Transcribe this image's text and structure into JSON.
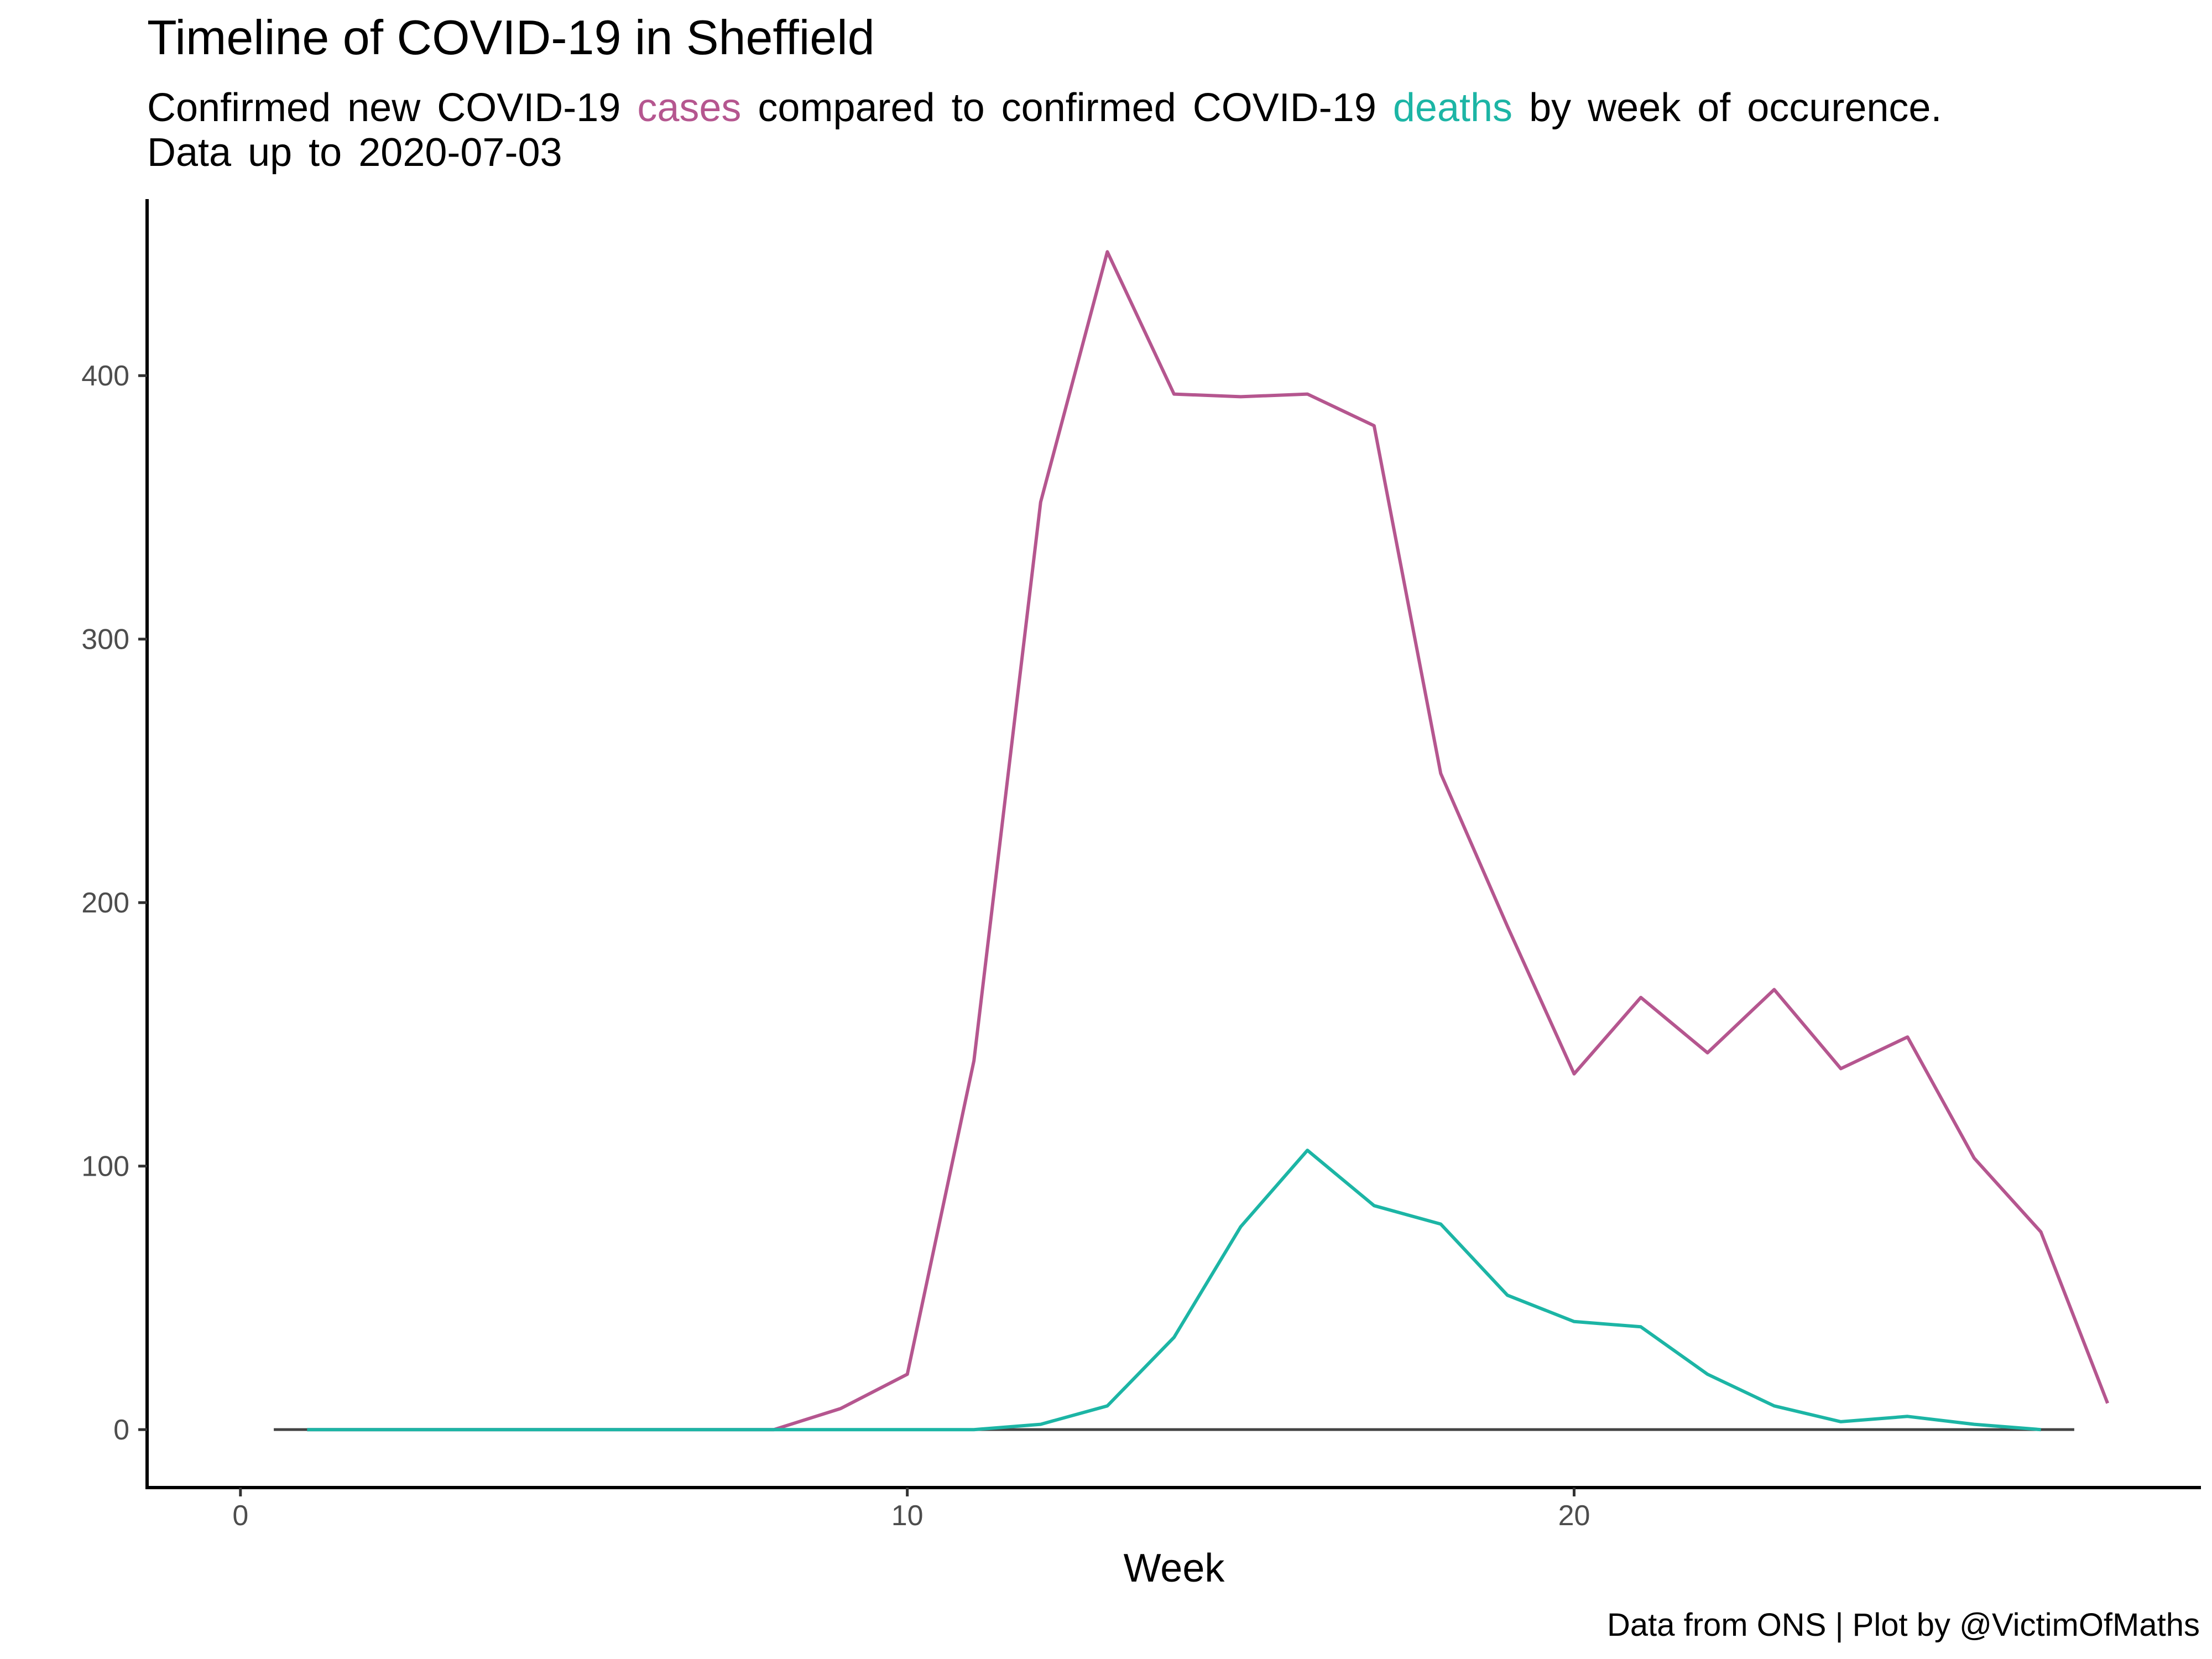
{
  "chart_data": {
    "type": "line",
    "title": "Timeline of COVID-19 in Sheffield",
    "subtitle": {
      "line1_prefix": "Confirmed new COVID-19",
      "cases_word": "cases",
      "line1_middle": "compared to confirmed COVID-19",
      "deaths_word": "deaths",
      "line1_suffix": "by week of occurence.",
      "line2": "Data up to 2020-07-03"
    },
    "caption": "Data from ONS | Plot by @VictimOfMaths",
    "xlabel": "Week",
    "ylabel": "",
    "xlim": [
      -1.4,
      29.4
    ],
    "ylim": [
      -22,
      467
    ],
    "x_ticks": [
      0,
      10,
      20
    ],
    "y_ticks": [
      0,
      100,
      200,
      300,
      400
    ],
    "grid": false,
    "zero_line": {
      "x_start": 0.5,
      "x_end": 27.5,
      "color": "#444444"
    },
    "series": [
      {
        "name": "cases",
        "color": "#b5568f",
        "x": [
          1,
          2,
          3,
          4,
          5,
          6,
          7,
          8,
          9,
          10,
          11,
          12,
          13,
          14,
          15,
          16,
          17,
          18,
          19,
          20,
          21,
          22,
          23,
          24,
          25,
          26,
          27,
          28
        ],
        "values": [
          0,
          0,
          0,
          0,
          0,
          0,
          0,
          0,
          8,
          21,
          140,
          352,
          447,
          393,
          392,
          393,
          381,
          249,
          191,
          135,
          164,
          143,
          167,
          137,
          149,
          103,
          75,
          10
        ]
      },
      {
        "name": "deaths",
        "color": "#1cb5a5",
        "x": [
          1,
          2,
          3,
          4,
          5,
          6,
          7,
          8,
          9,
          10,
          11,
          12,
          13,
          14,
          15,
          16,
          17,
          18,
          19,
          20,
          21,
          22,
          23,
          24,
          25,
          26,
          27
        ],
        "values": [
          0,
          0,
          0,
          0,
          0,
          0,
          0,
          0,
          0,
          0,
          0,
          2,
          9,
          35,
          77,
          106,
          85,
          78,
          51,
          41,
          39,
          21,
          9,
          3,
          5,
          2,
          0
        ]
      }
    ]
  }
}
